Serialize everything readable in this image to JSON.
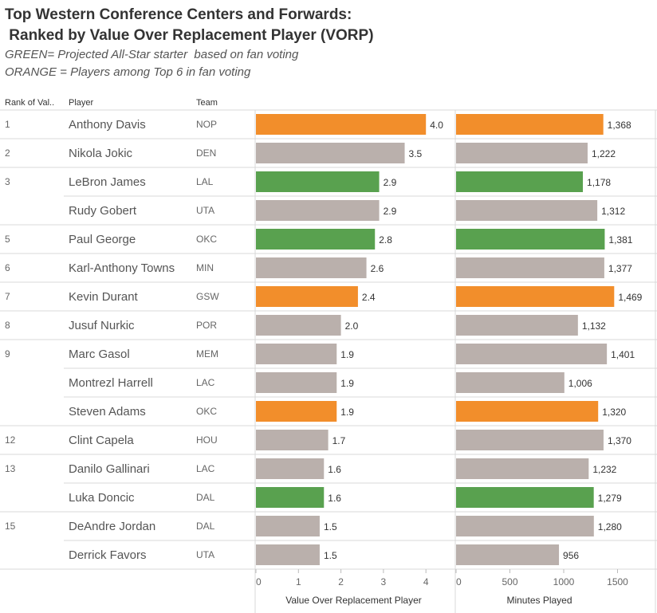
{
  "title": {
    "line1": "Top Western Conference Centers and Forwards:",
    "line2": " Ranked by Value Over Replacement Player (VORP)",
    "sub1": "GREEN= Projected All-Star starter  based on fan voting",
    "sub2": "ORANGE = Players among Top 6 in fan voting"
  },
  "headers": {
    "rank": "Rank of Val..",
    "player": "Player",
    "team": "Team"
  },
  "colors": {
    "orange": "#f28e2b",
    "green": "#59a14f",
    "grey": "#bab0ac"
  },
  "chart_data": {
    "type": "bar",
    "orientation": "horizontal",
    "rows": [
      {
        "rank": "1",
        "player": "Anthony Davis",
        "team": "NOP",
        "vorp": 4.0,
        "vorp_label": "4.0",
        "minutes": 1368,
        "minutes_label": "1,368",
        "color": "orange"
      },
      {
        "rank": "2",
        "player": "Nikola Jokic",
        "team": "DEN",
        "vorp": 3.5,
        "vorp_label": "3.5",
        "minutes": 1222,
        "minutes_label": "1,222",
        "color": "grey"
      },
      {
        "rank": "3",
        "player": "LeBron James",
        "team": "LAL",
        "vorp": 2.9,
        "vorp_label": "2.9",
        "minutes": 1178,
        "minutes_label": "1,178",
        "color": "green"
      },
      {
        "rank": "",
        "player": "Rudy Gobert",
        "team": "UTA",
        "vorp": 2.9,
        "vorp_label": "2.9",
        "minutes": 1312,
        "minutes_label": "1,312",
        "color": "grey"
      },
      {
        "rank": "5",
        "player": "Paul George",
        "team": "OKC",
        "vorp": 2.8,
        "vorp_label": "2.8",
        "minutes": 1381,
        "minutes_label": "1,381",
        "color": "green"
      },
      {
        "rank": "6",
        "player": "Karl-Anthony Towns",
        "team": "MIN",
        "vorp": 2.6,
        "vorp_label": "2.6",
        "minutes": 1377,
        "minutes_label": "1,377",
        "color": "grey"
      },
      {
        "rank": "7",
        "player": "Kevin Durant",
        "team": "GSW",
        "vorp": 2.4,
        "vorp_label": "2.4",
        "minutes": 1469,
        "minutes_label": "1,469",
        "color": "orange"
      },
      {
        "rank": "8",
        "player": "Jusuf Nurkic",
        "team": "POR",
        "vorp": 2.0,
        "vorp_label": "2.0",
        "minutes": 1132,
        "minutes_label": "1,132",
        "color": "grey"
      },
      {
        "rank": "9",
        "player": "Marc Gasol",
        "team": "MEM",
        "vorp": 1.9,
        "vorp_label": "1.9",
        "minutes": 1401,
        "minutes_label": "1,401",
        "color": "grey"
      },
      {
        "rank": "",
        "player": "Montrezl Harrell",
        "team": "LAC",
        "vorp": 1.9,
        "vorp_label": "1.9",
        "minutes": 1006,
        "minutes_label": "1,006",
        "color": "grey"
      },
      {
        "rank": "",
        "player": "Steven Adams",
        "team": "OKC",
        "vorp": 1.9,
        "vorp_label": "1.9",
        "minutes": 1320,
        "minutes_label": "1,320",
        "color": "orange"
      },
      {
        "rank": "12",
        "player": "Clint Capela",
        "team": "HOU",
        "vorp": 1.7,
        "vorp_label": "1.7",
        "minutes": 1370,
        "minutes_label": "1,370",
        "color": "grey"
      },
      {
        "rank": "13",
        "player": "Danilo Gallinari",
        "team": "LAC",
        "vorp": 1.6,
        "vorp_label": "1.6",
        "minutes": 1232,
        "minutes_label": "1,232",
        "color": "grey"
      },
      {
        "rank": "",
        "player": "Luka Doncic",
        "team": "DAL",
        "vorp": 1.6,
        "vorp_label": "1.6",
        "minutes": 1279,
        "minutes_label": "1,279",
        "color": "green"
      },
      {
        "rank": "15",
        "player": "DeAndre Jordan",
        "team": "DAL",
        "vorp": 1.5,
        "vorp_label": "1.5",
        "minutes": 1280,
        "minutes_label": "1,280",
        "color": "grey"
      },
      {
        "rank": "",
        "player": "Derrick Favors",
        "team": "UTA",
        "vorp": 1.5,
        "vorp_label": "1.5",
        "minutes": 956,
        "minutes_label": "956",
        "color": "grey"
      }
    ],
    "vorp_axis": {
      "title": "Value Over Replacement Player",
      "min": 0,
      "max": 4.5,
      "ticks": [
        0,
        1,
        2,
        3,
        4
      ]
    },
    "minutes_axis": {
      "title": "Minutes Played",
      "min": 0,
      "max": 1850,
      "ticks": [
        0,
        500,
        1000,
        1500
      ]
    }
  }
}
